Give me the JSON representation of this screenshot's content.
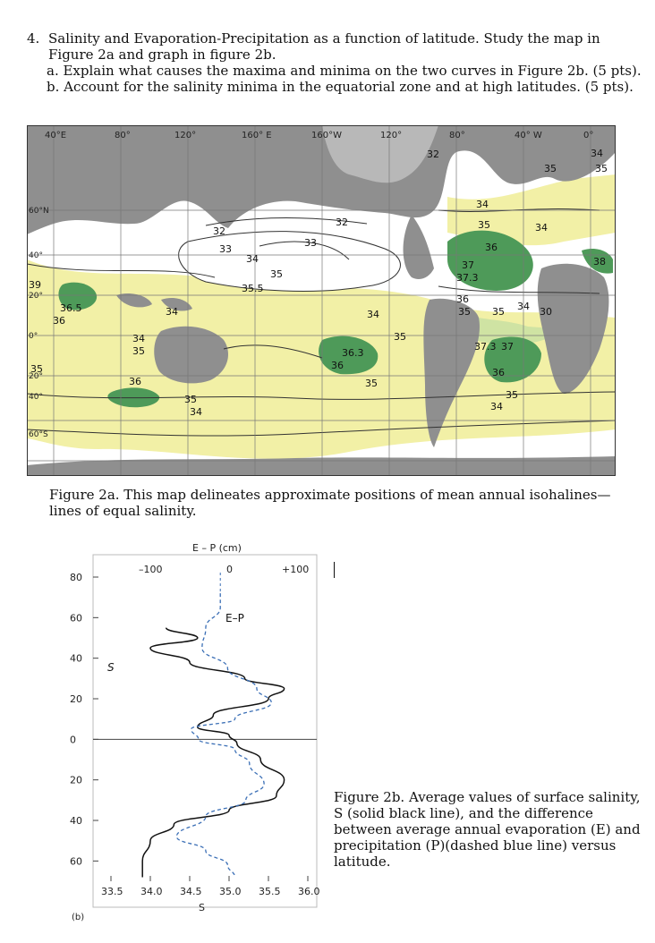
{
  "question": {
    "number": "4.",
    "title": "Salinity and Evaporation-Precipitation as a function of latitude. Study the map in Figure 2a and graph in figure 2b.",
    "part_a": "a.  Explain what causes the maxima and minima on the two curves in Figure 2b. (5 pts).",
    "part_b": "b.  Account for the salinity minima in the equatorial zone and at high latitudes. (5 pts)."
  },
  "map": {
    "top_labels": [
      "40°E",
      "80°",
      "120°",
      "160° E",
      "160°W",
      "120°",
      "80°",
      "40° W",
      "0°"
    ],
    "left_labels": [
      "60°N",
      "40°",
      "20°",
      "0°",
      "20°",
      "40°",
      "60°S"
    ],
    "isohaline_labels": [
      "32",
      "32",
      "33",
      "33",
      "34",
      "35",
      "35.5",
      "36.5",
      "36",
      "34",
      "34",
      "35",
      "36",
      "35",
      "34",
      "36.3",
      "36",
      "35",
      "34",
      "35",
      "32",
      "34",
      "35",
      "36",
      "37",
      "37.3",
      "36",
      "35",
      "35",
      "34",
      "30",
      "37.3",
      "37",
      "36",
      "35",
      "34",
      "34",
      "35",
      "38",
      "39",
      "35",
      "34",
      "35"
    ],
    "colors": {
      "land": "#8f8f8f",
      "ocean_white": "#ffffff",
      "yellow": "#f2f0a6",
      "green": "#4e9a59",
      "lightgreen": "#cfe3a3",
      "grid": "#777777"
    }
  },
  "caption_a": "Figure 2a.  This map delineates approximate positions of mean annual isohalines—lines of equal salinity.",
  "graph": {
    "top_axis_title": "E – P (cm)",
    "top_ticks": [
      "–100",
      "0",
      "+100"
    ],
    "latitude_ticks": [
      "80",
      "60",
      "40",
      "20",
      "0",
      "20",
      "40",
      "60"
    ],
    "bottom_ticks": [
      "33.5",
      "34.0",
      "34.5",
      "35.0",
      "35.5",
      "36.0"
    ],
    "bottom_axis_title": "S",
    "curve_s_label": "S",
    "curve_ep_label": "E–P",
    "panel_label": "(b)",
    "colors": {
      "salinity": "#111111",
      "e_minus_p": "#3b6fb6",
      "frame": "#999999"
    }
  },
  "chart_data": {
    "type": "line",
    "x_axis": "salinity / E–P",
    "y_axis": "latitude",
    "ylim": [
      -70,
      80
    ],
    "salinity_xlim": [
      33.5,
      36.0
    ],
    "ep_xlim": [
      -150,
      120
    ],
    "series": [
      {
        "name": "S",
        "points": [
          [
            34.2,
            55
          ],
          [
            34.6,
            50
          ],
          [
            34.0,
            45
          ],
          [
            34.5,
            38
          ],
          [
            35.2,
            30
          ],
          [
            35.7,
            25
          ],
          [
            35.5,
            20
          ],
          [
            34.8,
            12
          ],
          [
            34.6,
            6
          ],
          [
            35.0,
            2
          ],
          [
            35.1,
            -2
          ],
          [
            35.4,
            -10
          ],
          [
            35.7,
            -20
          ],
          [
            35.6,
            -28
          ],
          [
            35.0,
            -35
          ],
          [
            34.3,
            -42
          ],
          [
            34.0,
            -50
          ],
          [
            33.9,
            -60
          ],
          [
            33.9,
            -68
          ]
        ]
      },
      {
        "name": "E–P",
        "points": [
          [
            0,
            72
          ],
          [
            0,
            65
          ],
          [
            -20,
            55
          ],
          [
            -25,
            45
          ],
          [
            10,
            35
          ],
          [
            50,
            25
          ],
          [
            70,
            18
          ],
          [
            20,
            10
          ],
          [
            -40,
            5
          ],
          [
            -30,
            0
          ],
          [
            20,
            -5
          ],
          [
            40,
            -12
          ],
          [
            60,
            -22
          ],
          [
            35,
            -30
          ],
          [
            -20,
            -38
          ],
          [
            -60,
            -48
          ],
          [
            -20,
            -55
          ],
          [
            10,
            -62
          ],
          [
            20,
            -68
          ]
        ]
      }
    ]
  },
  "caption_b": "Figure 2b. Average values of surface salinity, S (solid black line), and the difference between average annual evaporation (E) and precipitation (P)(dashed blue line) versus latitude."
}
